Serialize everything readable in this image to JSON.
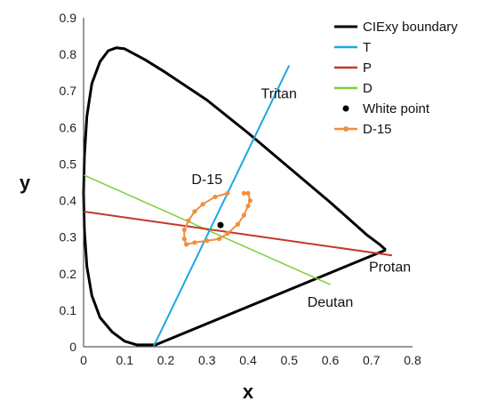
{
  "chart_data": {
    "type": "line",
    "xlabel": "x",
    "ylabel": "y",
    "xlim": [
      0,
      0.8
    ],
    "ylim": [
      0,
      0.9
    ],
    "xticks": [
      "0",
      "0.1",
      "0.2",
      "0.3",
      "0.4",
      "0.5",
      "0.6",
      "0.7",
      "0.8"
    ],
    "yticks": [
      "0",
      "0.1",
      "0.2",
      "0.3",
      "0.4",
      "0.5",
      "0.6",
      "0.7",
      "0.8",
      "0.9"
    ],
    "grid": false,
    "legend_position": "top-right",
    "series": [
      {
        "name": "CIExy boundary",
        "kind": "line",
        "color": "#000000",
        "x": [
          0.735,
          0.72,
          0.69,
          0.6,
          0.5,
          0.4,
          0.3,
          0.2,
          0.15,
          0.1,
          0.08,
          0.06,
          0.04,
          0.02,
          0.008,
          0.002,
          0.0,
          0.002,
          0.008,
          0.02,
          0.04,
          0.07,
          0.1,
          0.13,
          0.15,
          0.17,
          0.175,
          0.735
        ],
        "y": [
          0.265,
          0.28,
          0.305,
          0.395,
          0.49,
          0.585,
          0.675,
          0.75,
          0.785,
          0.815,
          0.818,
          0.81,
          0.78,
          0.72,
          0.63,
          0.52,
          0.42,
          0.32,
          0.22,
          0.14,
          0.08,
          0.04,
          0.015,
          0.005,
          0.005,
          0.005,
          0.005,
          0.265
        ]
      },
      {
        "name": "T",
        "kind": "line",
        "color": "#1ea7e1",
        "x": [
          0.17,
          0.5
        ],
        "y": [
          0.0,
          0.77
        ]
      },
      {
        "name": "P",
        "kind": "line",
        "color": "#c0392b",
        "x": [
          0.0,
          0.75
        ],
        "y": [
          0.37,
          0.25
        ]
      },
      {
        "name": "D",
        "kind": "line",
        "color": "#7ccf3a",
        "x": [
          0.0,
          0.6
        ],
        "y": [
          0.47,
          0.17
        ]
      },
      {
        "name": "White point",
        "kind": "point",
        "color": "#000000",
        "x": [
          0.333
        ],
        "y": [
          0.333
        ]
      },
      {
        "name": "D-15",
        "kind": "line-markers",
        "color": "#f28e3c",
        "x": [
          0.35,
          0.32,
          0.29,
          0.27,
          0.255,
          0.245,
          0.245,
          0.25,
          0.27,
          0.3,
          0.33,
          0.35,
          0.375,
          0.39,
          0.4,
          0.405,
          0.4,
          0.39
        ],
        "y": [
          0.42,
          0.41,
          0.39,
          0.37,
          0.345,
          0.32,
          0.295,
          0.28,
          0.285,
          0.29,
          0.295,
          0.31,
          0.335,
          0.36,
          0.385,
          0.4,
          0.42,
          0.42
        ]
      }
    ],
    "annotations": [
      {
        "text": "Tritan",
        "x": 0.475,
        "y": 0.68
      },
      {
        "text": "D-15",
        "x": 0.3,
        "y": 0.445
      },
      {
        "text": "Protan",
        "x": 0.745,
        "y": 0.205
      },
      {
        "text": "Deutan",
        "x": 0.6,
        "y": 0.11
      }
    ]
  }
}
